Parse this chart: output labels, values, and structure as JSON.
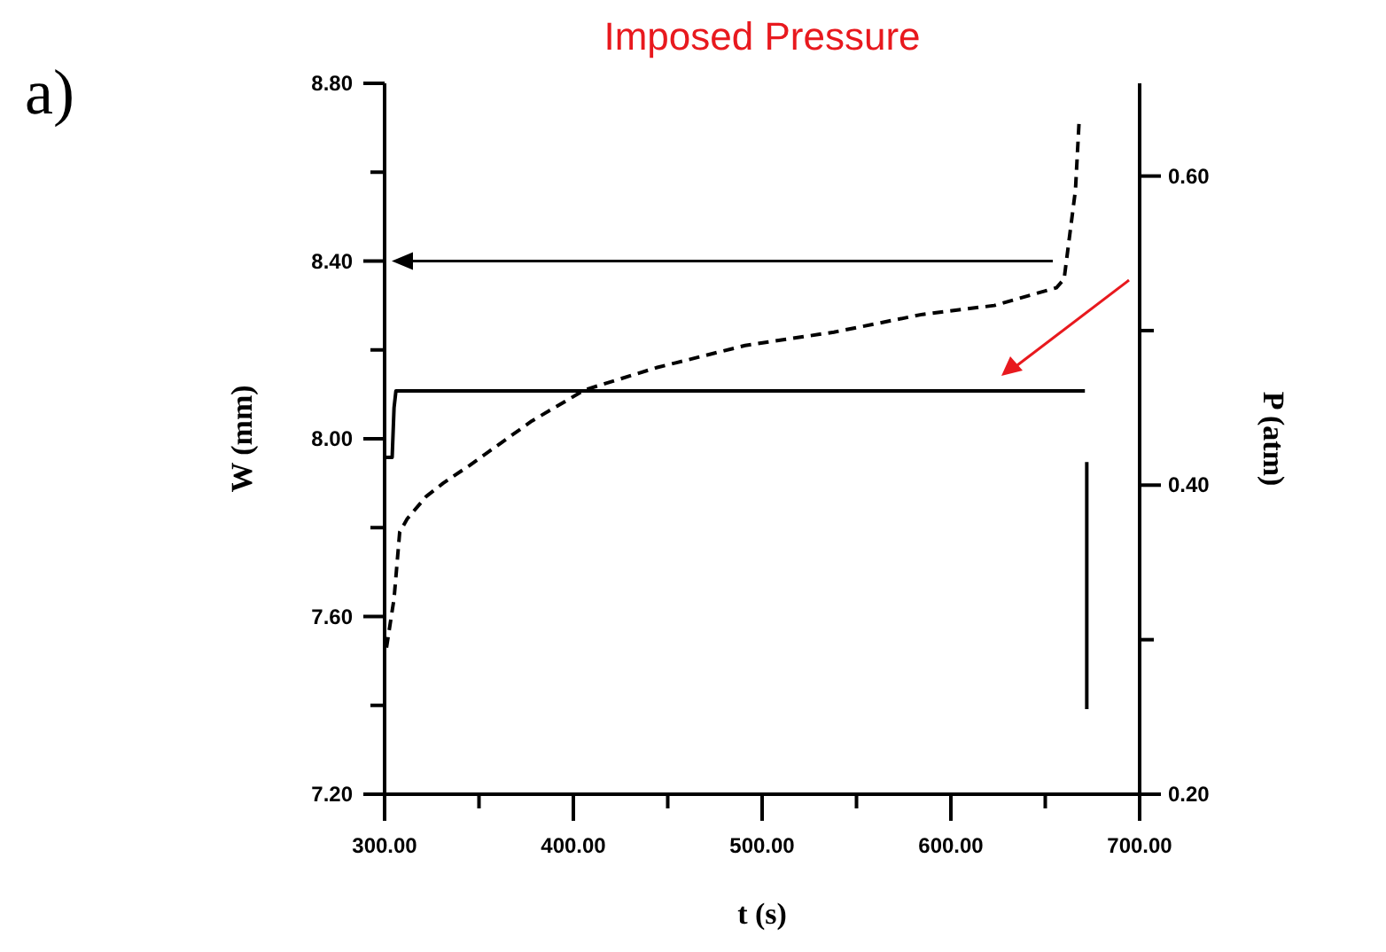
{
  "chart_data": {
    "type": "line",
    "title": "Imposed Pressure",
    "xlabel": "t (s)",
    "ylabel": "W (mm)",
    "y2label": "P (atm)",
    "annotations": [
      "a)"
    ],
    "xlim": [
      300,
      700
    ],
    "xticks": [
      {
        "value": 300,
        "label": "300.00"
      },
      {
        "value": 350,
        "label": null
      },
      {
        "value": 400,
        "label": "400.00"
      },
      {
        "value": 450,
        "label": null
      },
      {
        "value": 500,
        "label": "500.00"
      },
      {
        "value": 550,
        "label": null
      },
      {
        "value": 600,
        "label": "600.00"
      },
      {
        "value": 650,
        "label": null
      },
      {
        "value": 700,
        "label": "700.00"
      }
    ],
    "ylim": [
      7.2,
      8.8
    ],
    "yticks": [
      {
        "value": 7.2,
        "label": "7.20"
      },
      {
        "value": 7.4,
        "label": null
      },
      {
        "value": 7.6,
        "label": "7.60"
      },
      {
        "value": 7.8,
        "label": null
      },
      {
        "value": 8.0,
        "label": "8.00"
      },
      {
        "value": 8.2,
        "label": null
      },
      {
        "value": 8.4,
        "label": "8.40"
      },
      {
        "value": 8.6,
        "label": null
      },
      {
        "value": 8.8,
        "label": "8.80"
      }
    ],
    "y2lim": [
      0.2,
      0.66
    ],
    "y2ticks": [
      {
        "value": 0.2,
        "label": "0.20"
      },
      {
        "value": 0.3,
        "label": null
      },
      {
        "value": 0.4,
        "label": "0.40"
      },
      {
        "value": 0.5,
        "label": null
      },
      {
        "value": 0.6,
        "label": "0.60"
      }
    ],
    "grid": false,
    "series": [
      {
        "color": "#000000",
        "line_style": "dashed",
        "x": [
          301,
          305,
          308,
          312,
          322,
          331,
          345,
          378,
          406,
          444,
          491,
          538,
          585,
          623,
          656,
          660,
          663,
          666,
          668
        ],
        "values": [
          7.53,
          7.64,
          7.79,
          7.82,
          7.87,
          7.9,
          7.94,
          8.04,
          8.11,
          8.16,
          8.21,
          8.24,
          8.28,
          8.3,
          8.34,
          8.36,
          8.46,
          8.56,
          8.72
        ]
      },
      {
        "color": "#000000",
        "line_style": "solid",
        "axis": "y2",
        "x": [
          300,
          304,
          305,
          306,
          400,
          500,
          600,
          671
        ],
        "values": [
          0.418,
          0.418,
          0.45,
          0.461,
          0.461,
          0.461,
          0.461,
          0.461
        ]
      },
      {
        "color": "#000000",
        "line_style": "solid",
        "axis": "y2",
        "x": [
          672,
          672
        ],
        "values": [
          0.415,
          0.255
        ]
      }
    ]
  }
}
